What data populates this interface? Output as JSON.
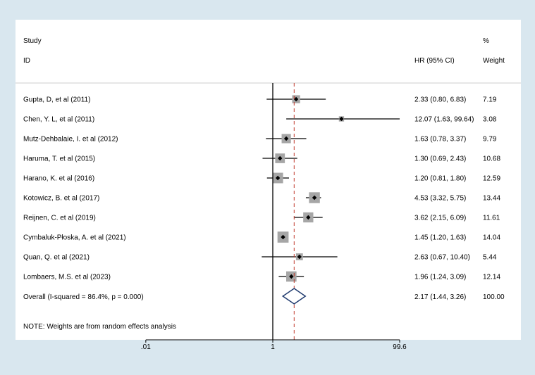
{
  "chart_data": {
    "type": "forest",
    "header": {
      "study_line1": "Study",
      "study_line2": "ID",
      "effect_label": "HR (95% CI)",
      "weight_line1": "%",
      "weight_line2": "Weight"
    },
    "studies": [
      {
        "label": "Gupta, D, et al (2011)",
        "hr": 2.33,
        "lo": 0.8,
        "hi": 6.83,
        "ci_text": "2.33 (0.80, 6.83)",
        "weight": 7.19,
        "weight_text": "7.19"
      },
      {
        "label": "Chen, Y. L, et al (2011)",
        "hr": 12.07,
        "lo": 1.63,
        "hi": 99.64,
        "ci_text": "12.07 (1.63, 99.64)",
        "weight": 3.08,
        "weight_text": "3.08"
      },
      {
        "label": "Mutz-Dehbalaie, I. et al (2012)",
        "hr": 1.63,
        "lo": 0.78,
        "hi": 3.37,
        "ci_text": "1.63 (0.78, 3.37)",
        "weight": 9.79,
        "weight_text": "9.79"
      },
      {
        "label": "Haruma, T. et al (2015)",
        "hr": 1.3,
        "lo": 0.69,
        "hi": 2.43,
        "ci_text": "1.30 (0.69, 2.43)",
        "weight": 10.68,
        "weight_text": "10.68"
      },
      {
        "label": "Harano, K. et al (2016)",
        "hr": 1.2,
        "lo": 0.81,
        "hi": 1.8,
        "ci_text": "1.20 (0.81, 1.80)",
        "weight": 12.59,
        "weight_text": "12.59"
      },
      {
        "label": "Kotowicz, B. et al (2017)",
        "hr": 4.53,
        "lo": 3.32,
        "hi": 5.75,
        "ci_text": "4.53 (3.32, 5.75)",
        "weight": 13.44,
        "weight_text": "13.44"
      },
      {
        "label": "Reijnen, C. et al (2019)",
        "hr": 3.62,
        "lo": 2.15,
        "hi": 6.09,
        "ci_text": "3.62 (2.15, 6.09)",
        "weight": 11.61,
        "weight_text": "11.61"
      },
      {
        "label": "Cymbaluk-Płoska, A. et al (2021)",
        "hr": 1.45,
        "lo": 1.2,
        "hi": 1.63,
        "ci_text": "1.45 (1.20, 1.63)",
        "weight": 14.04,
        "weight_text": "14.04"
      },
      {
        "label": "Quan, Q. et al (2021)",
        "hr": 2.63,
        "lo": 0.67,
        "hi": 10.4,
        "ci_text": "2.63 (0.67, 10.40)",
        "weight": 5.44,
        "weight_text": "5.44"
      },
      {
        "label": "Lombaers, M.S. et al (2023)",
        "hr": 1.96,
        "lo": 1.24,
        "hi": 3.09,
        "ci_text": "1.96 (1.24, 3.09)",
        "weight": 12.14,
        "weight_text": "12.14"
      }
    ],
    "overall": {
      "label": "Overall  (I-squared = 86.4%, p = 0.000)",
      "hr": 2.17,
      "lo": 1.44,
      "hi": 3.26,
      "ci_text": "2.17 (1.44, 3.26)",
      "weight_text": "100.00"
    },
    "note": "NOTE: Weights are from random effects analysis",
    "axis": {
      "scale": "log",
      "range": [
        0.01,
        99.6
      ],
      "ticks": [
        {
          "value": 0.01,
          "label": ".01"
        },
        {
          "value": 1,
          "label": "1"
        },
        {
          "value": 99.6,
          "label": "99.6"
        }
      ],
      "null_value": 1
    },
    "colors": {
      "background": "#d9e7ef",
      "panel": "#ffffff",
      "square": "#a6a6a6",
      "overall_diamond": "#1f3a6e",
      "overall_line": "#c0392b",
      "ink": "#000000"
    }
  }
}
